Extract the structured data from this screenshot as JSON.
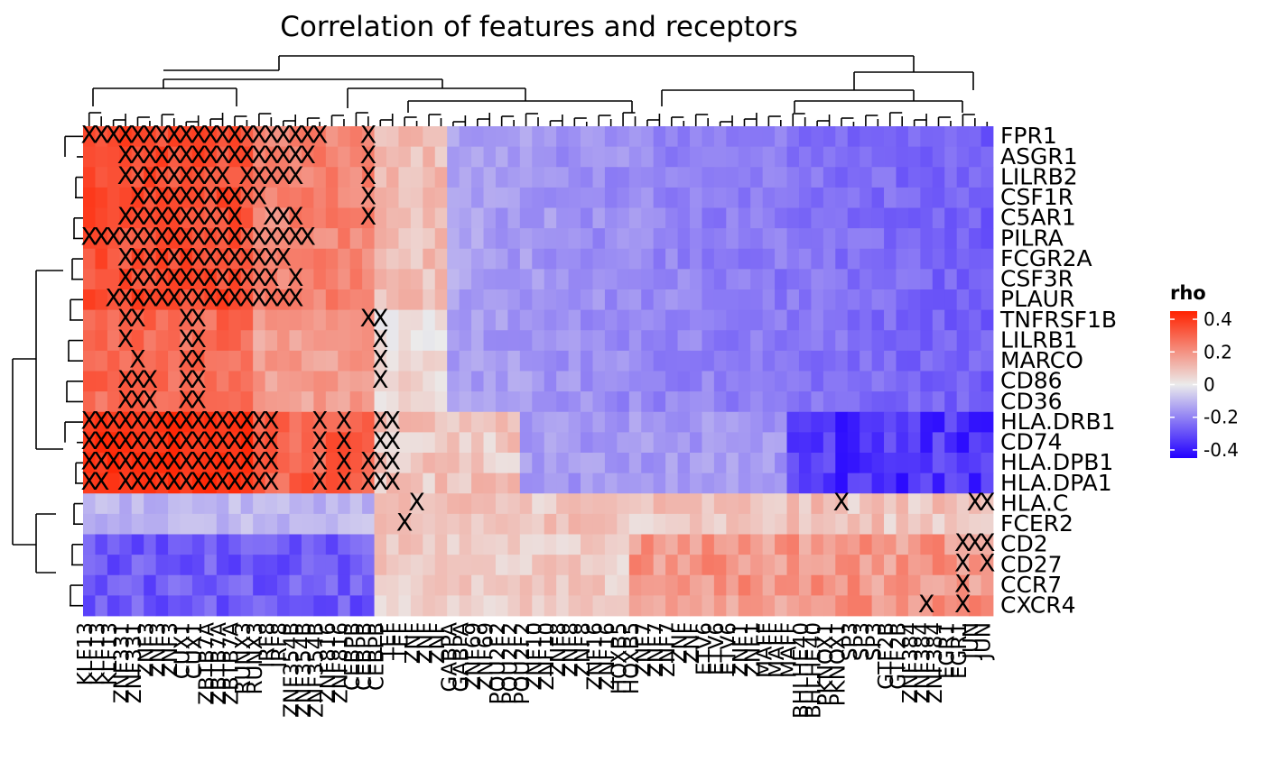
{
  "chart_data": {
    "type": "heatmap",
    "title": "Correlation of features and receptors",
    "rows": [
      "FPR1",
      "ASGR1",
      "LILRB2",
      "CSF1R",
      "C5AR1",
      "PILRA",
      "FCGR2A",
      "CSF3R",
      "PLAUR",
      "TNFRSF1B",
      "LILRB1",
      "MARCO",
      "CD86",
      "CD36",
      "HLA.DRB1",
      "CD74",
      "HLA.DPB1",
      "HLA.DPA1",
      "HLA.C",
      "FCER2",
      "CD2",
      "CD27",
      "CCR7",
      "CXCR4"
    ],
    "column_count": 75,
    "column_labels_visible_partial": [
      "KLF13",
      "ZNF331",
      "ZNF3",
      "CUX1",
      "ZBTB7A",
      "RUNX3",
      "IRF8",
      "ZNF354B",
      "ZNF816",
      "CEBPB",
      "TEF",
      "ZNF",
      "GABPA",
      "ZNF69",
      "POU2F2",
      "ZNF10",
      "ZNF8",
      "ZNF16",
      "HOXB5",
      "ZNF7",
      "ZNF",
      "ETV6",
      "ZNF1",
      "MAFF",
      "BHLHE40",
      "PKNOX1",
      "SP3",
      "GTF2B",
      "ZNF384",
      "EGR1",
      "JUN"
    ],
    "value_range": [
      -0.45,
      0.45
    ],
    "colorbar": {
      "title": "rho",
      "ticks": [
        0.4,
        0.2,
        0,
        -0.2,
        -0.4
      ],
      "tick_labels": [
        "0.4",
        "0.2",
        "0",
        "-0.2",
        "-0.4"
      ]
    },
    "colors": {
      "low": "#2200ff",
      "mid": "#ebebeb",
      "high": "#ff2200"
    },
    "row_groups": [
      {
        "rows": [
          0,
          13
        ],
        "pattern": "positive in myeloid-associated columns, negative elsewhere"
      },
      {
        "rows": [
          14,
          17
        ],
        "pattern": "strong positive in left columns, strong negative at right"
      },
      {
        "rows": [
          18,
          19
        ],
        "pattern": "weak positive right, weak negative left"
      },
      {
        "rows": [
          20,
          23
        ],
        "pattern": "negative left, positive right"
      }
    ],
    "significance_marker": "X",
    "grid": false
  }
}
